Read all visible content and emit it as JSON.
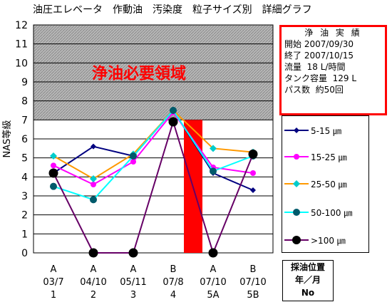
{
  "title": "油圧エレベータ　作動油　汚染度　粒子サイズ別　詳細グラフ",
  "info": {
    "heading": "浄 油 実 績",
    "lines": [
      "開始 2007/09/30",
      "終了 2007/10/15",
      "流量  18 L/時間",
      "タンク容量  129 L",
      "パス数  約50回"
    ]
  },
  "sample_label": [
    "採油位置",
    "年／月",
    "No"
  ],
  "colors": {
    "s5_15": "#000080",
    "s15_25": "#ff00ff",
    "s25_50": "#ff9900",
    "s50_100": "#00ffff",
    "s100": "#660066",
    "bar": "#ff0000",
    "hatch_bg": "#b8b8b8"
  },
  "chart_data": {
    "type": "line",
    "ylabel": "NAS等級",
    "ylim": [
      0,
      12
    ],
    "yticks": [
      0,
      1,
      2,
      3,
      4,
      5,
      6,
      7,
      8,
      9,
      10,
      11,
      12
    ],
    "grid": true,
    "shaded_region": {
      "from": 7,
      "to": 12,
      "label": "浄油必要領域"
    },
    "categories": [
      [
        "A",
        "03/7",
        "1"
      ],
      [
        "A",
        "04/10",
        "2"
      ],
      [
        "A",
        "05/11",
        "3"
      ],
      [
        "B",
        "07/8",
        "4"
      ],
      [
        "A",
        "07/10",
        "5A"
      ],
      [
        "B",
        "07/10",
        "5B"
      ]
    ],
    "marker_bar": {
      "between": [
        3,
        4
      ],
      "value": 7
    },
    "legend_position": "right",
    "series": [
      {
        "name": "5-15 ㎛",
        "color_key": "s5_15",
        "values": [
          4.2,
          5.6,
          5.1,
          7.5,
          4.2,
          3.3
        ],
        "marker": "diamond-small"
      },
      {
        "name": "15-25 ㎛",
        "color_key": "s15_25",
        "values": [
          4.6,
          3.6,
          4.8,
          7.4,
          4.5,
          4.2
        ],
        "marker": "circle"
      },
      {
        "name": "25-50 ㎛",
        "color_key": "s25_50",
        "values": [
          5.1,
          3.9,
          5.2,
          7.5,
          5.5,
          5.3
        ],
        "marker": "diamond"
      },
      {
        "name": "50-100 ㎛",
        "color_key": "s50_100",
        "values": [
          3.5,
          2.8,
          5.1,
          7.5,
          4.3,
          5.1
        ],
        "marker": "circle-dark"
      },
      {
        "name": ">100 ㎛",
        "color_key": "s100",
        "values": [
          4.2,
          0,
          0,
          6.9,
          0,
          5.2
        ],
        "marker": "circle-big"
      }
    ]
  }
}
